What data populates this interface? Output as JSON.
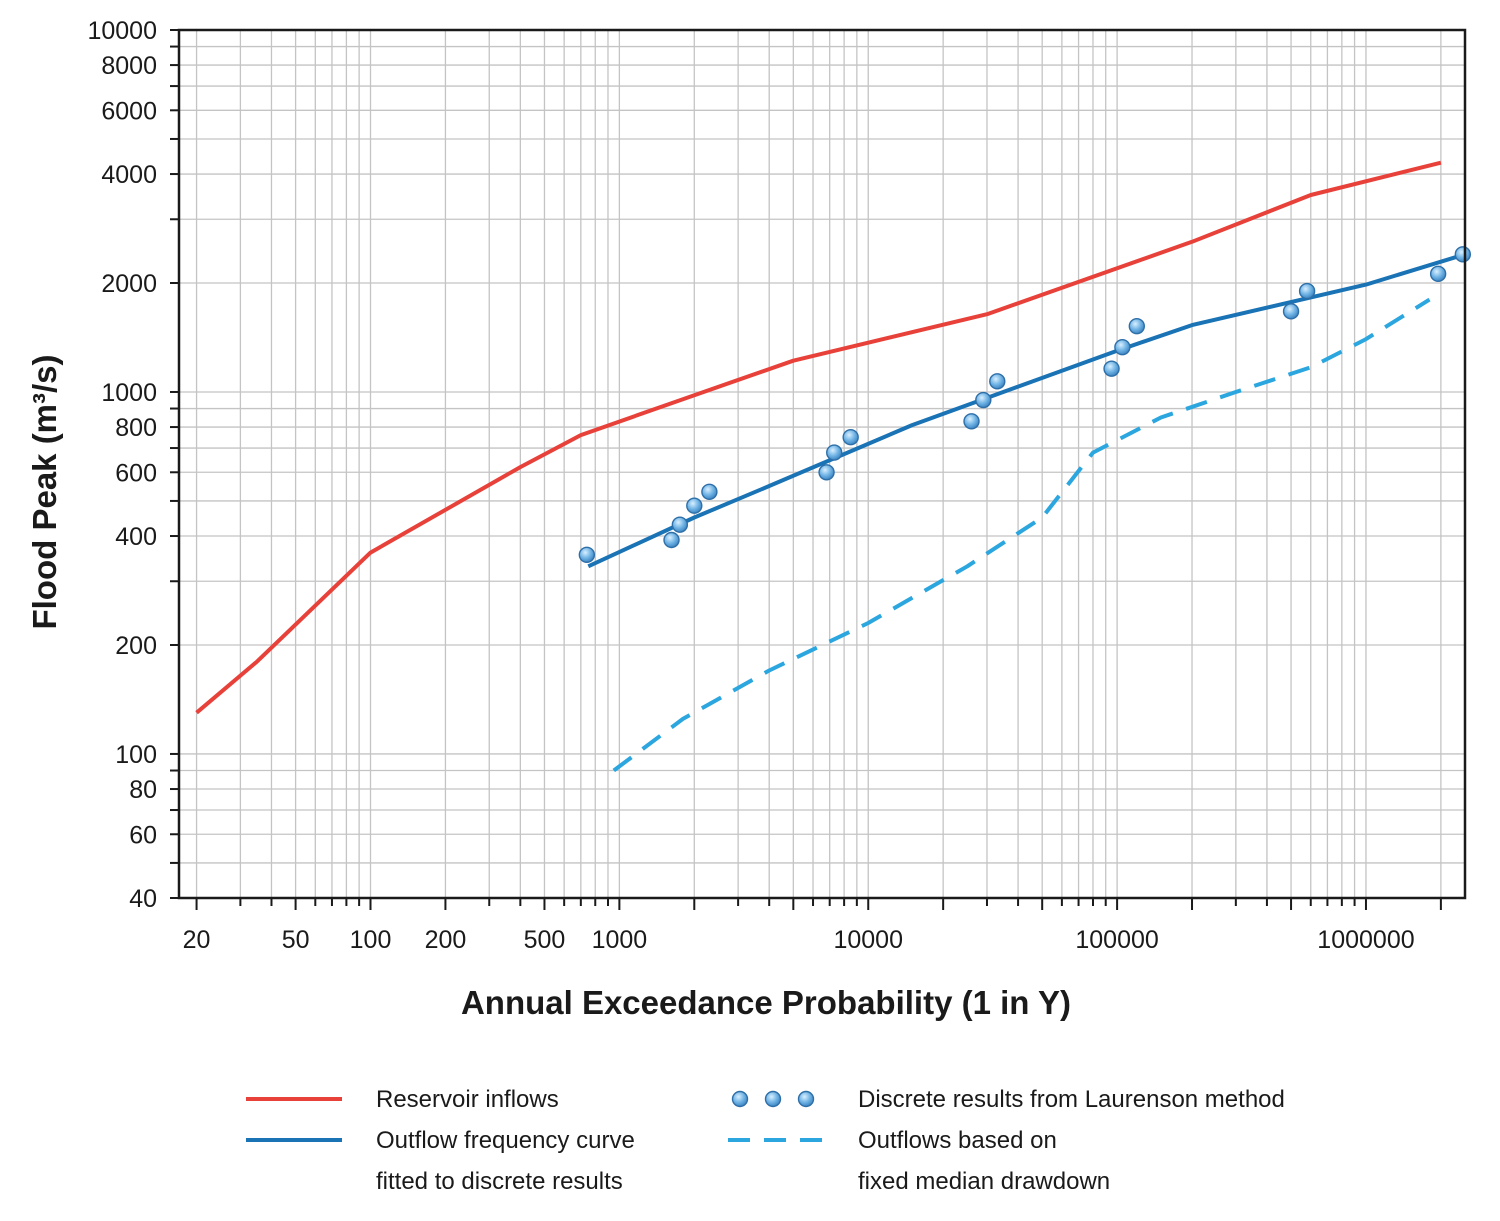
{
  "chart_data": {
    "type": "line",
    "title": "",
    "xlabel": "Annual Exceedance Probability (1 in Y)",
    "ylabel": "Flood Peak (m³/s)",
    "xscale": "log",
    "yscale": "log",
    "xlim": [
      17,
      2500000
    ],
    "ylim": [
      40,
      10000
    ],
    "grid": true,
    "legend_position": "bottom",
    "x_tick_labels": [
      {
        "value": 20,
        "label": "20"
      },
      {
        "value": 50,
        "label": "50"
      },
      {
        "value": 100,
        "label": "100"
      },
      {
        "value": 200,
        "label": "200"
      },
      {
        "value": 500,
        "label": "500"
      },
      {
        "value": 1000,
        "label": "1000"
      },
      {
        "value": 10000,
        "label": "10000"
      },
      {
        "value": 100000,
        "label": "100000"
      },
      {
        "value": 1000000,
        "label": "1000000"
      }
    ],
    "y_tick_labels": [
      {
        "value": 40,
        "label": "40"
      },
      {
        "value": 60,
        "label": "60"
      },
      {
        "value": 80,
        "label": "80"
      },
      {
        "value": 100,
        "label": "100"
      },
      {
        "value": 200,
        "label": "200"
      },
      {
        "value": 400,
        "label": "400"
      },
      {
        "value": 600,
        "label": "600"
      },
      {
        "value": 800,
        "label": "800"
      },
      {
        "value": 1000,
        "label": "1000"
      },
      {
        "value": 2000,
        "label": "2000"
      },
      {
        "value": 4000,
        "label": "4000"
      },
      {
        "value": 6000,
        "label": "6000"
      },
      {
        "value": 8000,
        "label": "8000"
      },
      {
        "value": 10000,
        "label": "10000"
      }
    ],
    "series": [
      {
        "name": "Reservoir inflows",
        "kind": "line",
        "style": "solid",
        "color": "#e8413a",
        "x": [
          20,
          35,
          100,
          400,
          700,
          2000,
          5000,
          30000,
          200000,
          600000,
          2000000
        ],
        "y": [
          130,
          180,
          360,
          620,
          760,
          980,
          1220,
          1640,
          2600,
          3500,
          4300
        ]
      },
      {
        "name": "Outflow frequency curve fitted to discrete results",
        "kind": "line",
        "style": "solid",
        "color": "#1a73b5",
        "x": [
          750,
          2000,
          4000,
          15000,
          100000,
          200000,
          1000000,
          2500000
        ],
        "y": [
          330,
          450,
          550,
          810,
          1300,
          1530,
          1980,
          2400
        ]
      },
      {
        "name": "Discrete results from Laurenson method",
        "kind": "scatter",
        "color": "#5aa7dd",
        "x": [
          740,
          1620,
          1750,
          2000,
          2300,
          6800,
          7300,
          8500,
          26000,
          29000,
          33000,
          95000,
          105000,
          120000,
          500000,
          580000,
          1950000,
          2450000
        ],
        "y": [
          355,
          390,
          430,
          485,
          530,
          600,
          680,
          750,
          830,
          950,
          1070,
          1160,
          1330,
          1520,
          1670,
          1900,
          2120,
          2400
        ]
      },
      {
        "name": "Outflows based on fixed median drawdown",
        "kind": "line",
        "style": "dashed",
        "color": "#2ba6de",
        "x": [
          950,
          1800,
          4000,
          10000,
          25000,
          50000,
          80000,
          150000,
          300000,
          600000,
          1000000,
          1800000
        ],
        "y": [
          90,
          125,
          170,
          230,
          330,
          450,
          680,
          850,
          1000,
          1170,
          1400,
          1800
        ]
      }
    ]
  },
  "legend": {
    "items": [
      {
        "label": "Reservoir inflows",
        "color": "#e8413a",
        "kind": "line"
      },
      {
        "label": "Outflow frequency curve",
        "label2": "fitted to discrete results",
        "color": "#1a73b5",
        "kind": "line"
      },
      {
        "label": "Discrete results from Laurenson method",
        "color": "#5aa7dd",
        "kind": "dots"
      },
      {
        "label": "Outflows based on",
        "label2": "fixed median drawdown",
        "color": "#2ba6de",
        "kind": "dashed"
      }
    ]
  }
}
